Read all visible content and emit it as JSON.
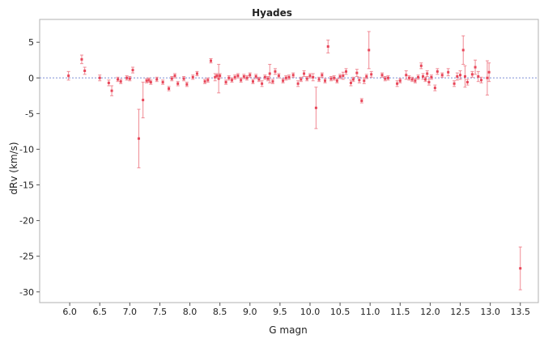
{
  "chart_data": {
    "type": "scatter",
    "title": "Hyades",
    "xlabel": "G magn",
    "ylabel": "dRv (km/s)",
    "xlim": [
      5.5,
      13.8
    ],
    "ylim": [
      -31.5,
      8.2
    ],
    "xticks": [
      "6.0",
      "6.5",
      "7.0",
      "7.5",
      "8.0",
      "8.5",
      "9.0",
      "9.5",
      "10.0",
      "10.5",
      "11.0",
      "11.5",
      "12.0",
      "12.5",
      "13.0",
      "13.5"
    ],
    "yticks": [
      "5",
      "0",
      "-5",
      "-10",
      "-15",
      "-20",
      "-25",
      "-30"
    ],
    "reference_line": 0,
    "grid": false,
    "legend": "none",
    "colors": {
      "points": "#e8475a",
      "errorbars": "#f08a94",
      "reference": "#7f8fd6",
      "frame": "#b0b0b0"
    },
    "series": [
      {
        "points": [
          {
            "x": 5.98,
            "y": 0.3,
            "err": 0.6
          },
          {
            "x": 6.2,
            "y": 2.6,
            "err": 0.6
          },
          {
            "x": 6.25,
            "y": 1.0,
            "err": 0.5
          },
          {
            "x": 6.5,
            "y": 0.0,
            "err": 0.4
          },
          {
            "x": 6.65,
            "y": -0.7,
            "err": 0.4
          },
          {
            "x": 6.7,
            "y": -1.8,
            "err": 0.7
          },
          {
            "x": 6.8,
            "y": -0.2,
            "err": 0.3
          },
          {
            "x": 6.85,
            "y": -0.5,
            "err": 0.3
          },
          {
            "x": 6.95,
            "y": 0.0,
            "err": 0.3
          },
          {
            "x": 7.0,
            "y": -0.1,
            "err": 0.3
          },
          {
            "x": 7.05,
            "y": 1.1,
            "err": 0.4
          },
          {
            "x": 7.15,
            "y": -8.5,
            "err": 4.1
          },
          {
            "x": 7.22,
            "y": -3.1,
            "err": 2.5
          },
          {
            "x": 7.28,
            "y": -0.4,
            "err": 0.3
          },
          {
            "x": 7.32,
            "y": -0.3,
            "err": 0.3
          },
          {
            "x": 7.35,
            "y": -0.6,
            "err": 0.3
          },
          {
            "x": 7.45,
            "y": -0.2,
            "err": 0.3
          },
          {
            "x": 7.55,
            "y": -0.6,
            "err": 0.3
          },
          {
            "x": 7.65,
            "y": -1.5,
            "err": 0.3
          },
          {
            "x": 7.7,
            "y": -0.1,
            "err": 0.3
          },
          {
            "x": 7.75,
            "y": 0.3,
            "err": 0.3
          },
          {
            "x": 7.8,
            "y": -0.8,
            "err": 0.3
          },
          {
            "x": 7.9,
            "y": -0.1,
            "err": 0.3
          },
          {
            "x": 7.95,
            "y": -0.9,
            "err": 0.3
          },
          {
            "x": 8.05,
            "y": 0.1,
            "err": 0.3
          },
          {
            "x": 8.12,
            "y": 0.6,
            "err": 0.3
          },
          {
            "x": 8.25,
            "y": -0.5,
            "err": 0.3
          },
          {
            "x": 8.3,
            "y": -0.3,
            "err": 0.3
          },
          {
            "x": 8.35,
            "y": 2.4,
            "err": 0.3
          },
          {
            "x": 8.42,
            "y": 0.1,
            "err": 0.5
          },
          {
            "x": 8.45,
            "y": 0.3,
            "err": 0.3
          },
          {
            "x": 8.48,
            "y": -0.1,
            "err": 2.0
          },
          {
            "x": 8.5,
            "y": 0.3,
            "err": 0.3
          },
          {
            "x": 8.6,
            "y": -0.6,
            "err": 0.3
          },
          {
            "x": 8.65,
            "y": 0.0,
            "err": 0.3
          },
          {
            "x": 8.7,
            "y": -0.3,
            "err": 0.3
          },
          {
            "x": 8.75,
            "y": 0.1,
            "err": 0.3
          },
          {
            "x": 8.8,
            "y": 0.3,
            "err": 0.3
          },
          {
            "x": 8.85,
            "y": -0.3,
            "err": 0.3
          },
          {
            "x": 8.9,
            "y": 0.2,
            "err": 0.3
          },
          {
            "x": 8.95,
            "y": 0.0,
            "err": 0.3
          },
          {
            "x": 9.0,
            "y": 0.4,
            "err": 0.3
          },
          {
            "x": 9.05,
            "y": -0.5,
            "err": 0.3
          },
          {
            "x": 9.1,
            "y": 0.2,
            "err": 0.3
          },
          {
            "x": 9.15,
            "y": -0.2,
            "err": 0.3
          },
          {
            "x": 9.2,
            "y": -0.8,
            "err": 0.4
          },
          {
            "x": 9.25,
            "y": 0.1,
            "err": 0.3
          },
          {
            "x": 9.3,
            "y": -0.1,
            "err": 0.3
          },
          {
            "x": 9.33,
            "y": 0.6,
            "err": 1.3
          },
          {
            "x": 9.38,
            "y": -0.5,
            "err": 0.3
          },
          {
            "x": 9.42,
            "y": 0.9,
            "err": 0.4
          },
          {
            "x": 9.48,
            "y": 0.3,
            "err": 0.3
          },
          {
            "x": 9.55,
            "y": -0.4,
            "err": 0.3
          },
          {
            "x": 9.6,
            "y": 0.0,
            "err": 0.3
          },
          {
            "x": 9.65,
            "y": 0.1,
            "err": 0.3
          },
          {
            "x": 9.72,
            "y": 0.4,
            "err": 0.3
          },
          {
            "x": 9.8,
            "y": -0.8,
            "err": 0.4
          },
          {
            "x": 9.85,
            "y": -0.2,
            "err": 0.3
          },
          {
            "x": 9.9,
            "y": 0.6,
            "err": 0.4
          },
          {
            "x": 9.95,
            "y": -0.1,
            "err": 0.3
          },
          {
            "x": 10.0,
            "y": 0.3,
            "err": 0.3
          },
          {
            "x": 10.05,
            "y": 0.1,
            "err": 0.5
          },
          {
            "x": 10.1,
            "y": -4.2,
            "err": 2.9
          },
          {
            "x": 10.15,
            "y": -0.2,
            "err": 0.3
          },
          {
            "x": 10.2,
            "y": 0.4,
            "err": 0.3
          },
          {
            "x": 10.25,
            "y": -0.4,
            "err": 0.3
          },
          {
            "x": 10.3,
            "y": 4.4,
            "err": 0.9
          },
          {
            "x": 10.35,
            "y": -0.1,
            "err": 0.3
          },
          {
            "x": 10.4,
            "y": 0.0,
            "err": 0.3
          },
          {
            "x": 10.45,
            "y": -0.4,
            "err": 0.3
          },
          {
            "x": 10.5,
            "y": 0.2,
            "err": 0.3
          },
          {
            "x": 10.55,
            "y": 0.3,
            "err": 0.5
          },
          {
            "x": 10.6,
            "y": 0.9,
            "err": 0.4
          },
          {
            "x": 10.68,
            "y": -0.7,
            "err": 0.4
          },
          {
            "x": 10.72,
            "y": -0.2,
            "err": 0.3
          },
          {
            "x": 10.78,
            "y": 0.7,
            "err": 0.5
          },
          {
            "x": 10.82,
            "y": -0.3,
            "err": 0.4
          },
          {
            "x": 10.86,
            "y": -3.2,
            "err": 0.3
          },
          {
            "x": 10.9,
            "y": -0.4,
            "err": 0.4
          },
          {
            "x": 10.94,
            "y": 0.2,
            "err": 0.3
          },
          {
            "x": 10.98,
            "y": 3.9,
            "err": 2.6
          },
          {
            "x": 11.02,
            "y": 0.5,
            "err": 0.4
          },
          {
            "x": 11.2,
            "y": 0.4,
            "err": 0.3
          },
          {
            "x": 11.25,
            "y": -0.1,
            "err": 0.3
          },
          {
            "x": 11.3,
            "y": 0.0,
            "err": 0.3
          },
          {
            "x": 11.45,
            "y": -0.8,
            "err": 0.4
          },
          {
            "x": 11.5,
            "y": -0.4,
            "err": 0.3
          },
          {
            "x": 11.6,
            "y": 0.4,
            "err": 0.6
          },
          {
            "x": 11.65,
            "y": 0.0,
            "err": 0.3
          },
          {
            "x": 11.7,
            "y": -0.2,
            "err": 0.3
          },
          {
            "x": 11.75,
            "y": -0.4,
            "err": 0.3
          },
          {
            "x": 11.8,
            "y": 0.1,
            "err": 0.3
          },
          {
            "x": 11.85,
            "y": 1.7,
            "err": 0.4
          },
          {
            "x": 11.88,
            "y": 0.2,
            "err": 0.4
          },
          {
            "x": 11.92,
            "y": -0.2,
            "err": 0.3
          },
          {
            "x": 11.95,
            "y": 0.6,
            "err": 0.4
          },
          {
            "x": 11.98,
            "y": -0.6,
            "err": 0.4
          },
          {
            "x": 12.02,
            "y": 0.1,
            "err": 0.3
          },
          {
            "x": 12.08,
            "y": -1.4,
            "err": 0.4
          },
          {
            "x": 12.12,
            "y": 0.9,
            "err": 0.4
          },
          {
            "x": 12.2,
            "y": 0.4,
            "err": 0.3
          },
          {
            "x": 12.3,
            "y": 0.8,
            "err": 0.5
          },
          {
            "x": 12.4,
            "y": -0.8,
            "err": 0.4
          },
          {
            "x": 12.45,
            "y": 0.2,
            "err": 0.5
          },
          {
            "x": 12.5,
            "y": 0.4,
            "err": 0.6
          },
          {
            "x": 12.55,
            "y": 3.9,
            "err": 2.0
          },
          {
            "x": 12.58,
            "y": 0.2,
            "err": 1.5
          },
          {
            "x": 12.62,
            "y": -0.6,
            "err": 0.4
          },
          {
            "x": 12.7,
            "y": 0.5,
            "err": 0.4
          },
          {
            "x": 12.75,
            "y": 1.5,
            "err": 1.0
          },
          {
            "x": 12.8,
            "y": 0.2,
            "err": 0.7
          },
          {
            "x": 12.85,
            "y": -0.3,
            "err": 0.4
          },
          {
            "x": 12.95,
            "y": 0.0,
            "err": 2.4
          },
          {
            "x": 12.98,
            "y": 0.8,
            "err": 1.3
          },
          {
            "x": 13.5,
            "y": -26.7,
            "err": 3.0
          }
        ]
      }
    ]
  }
}
